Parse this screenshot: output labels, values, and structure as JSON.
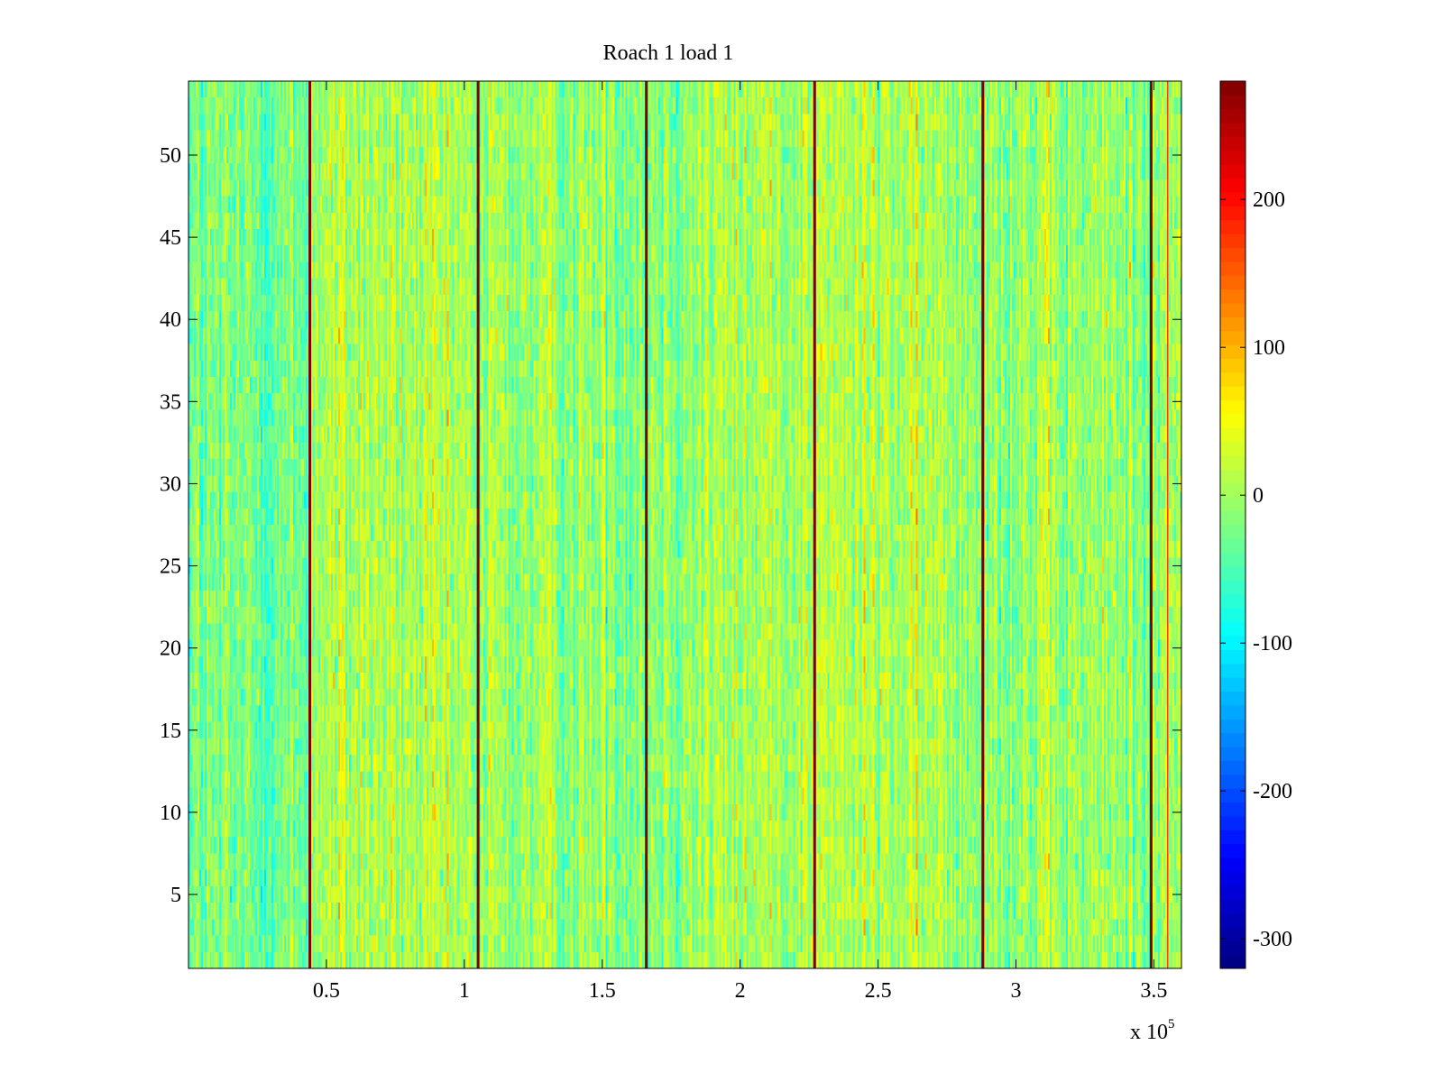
{
  "chart_data": {
    "type": "heatmap",
    "title": "Roach 1 load 1",
    "xlabel": "",
    "ylabel": "",
    "x_exponent_label": {
      "base": "x 10",
      "exponent": "5"
    },
    "xlim": [
      0,
      360000
    ],
    "ylim": [
      0.5,
      54.5
    ],
    "x_ticks": [
      {
        "value": 50000,
        "label": "0.5"
      },
      {
        "value": 100000,
        "label": "1"
      },
      {
        "value": 150000,
        "label": "1.5"
      },
      {
        "value": 200000,
        "label": "2"
      },
      {
        "value": 250000,
        "label": "2.5"
      },
      {
        "value": 300000,
        "label": "3"
      },
      {
        "value": 350000,
        "label": "3.5"
      }
    ],
    "y_ticks": [
      {
        "value": 5,
        "label": "5"
      },
      {
        "value": 10,
        "label": "10"
      },
      {
        "value": 15,
        "label": "15"
      },
      {
        "value": 20,
        "label": "20"
      },
      {
        "value": 25,
        "label": "25"
      },
      {
        "value": 30,
        "label": "30"
      },
      {
        "value": 35,
        "label": "35"
      },
      {
        "value": 40,
        "label": "40"
      },
      {
        "value": 45,
        "label": "45"
      },
      {
        "value": 50,
        "label": "50"
      }
    ],
    "rows": 54,
    "colormap": "jet",
    "clim": [
      -320,
      280
    ],
    "colorbar": {
      "ticks": [
        {
          "value": 200,
          "label": "200"
        },
        {
          "value": 100,
          "label": "100"
        },
        {
          "value": 0,
          "label": "0"
        },
        {
          "value": -100,
          "label": "-100"
        },
        {
          "value": -200,
          "label": "-200"
        },
        {
          "value": -300,
          "label": "-300"
        }
      ]
    },
    "background_level_mean": 0,
    "background_level_spread": 45,
    "spike_columns_x": [
      44000,
      105000,
      166000,
      227000,
      288000,
      349000
    ],
    "spike_value": 280,
    "edge_spike_x": 355000
  }
}
